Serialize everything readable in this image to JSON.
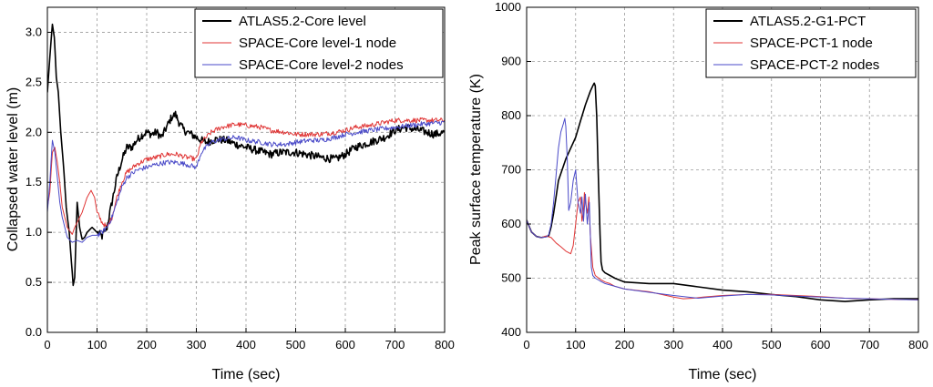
{
  "chart_data": [
    {
      "type": "line",
      "xlabel": "Time (sec)",
      "ylabel": "Collapsed water level (m)",
      "xlim": [
        0,
        800
      ],
      "ylim": [
        0,
        3.25
      ],
      "xticks": [
        0,
        100,
        200,
        300,
        400,
        500,
        600,
        700,
        800
      ],
      "yticks": [
        0.0,
        0.5,
        1.0,
        1.5,
        2.0,
        2.5,
        3.0
      ],
      "ytick_labels": [
        "0.0",
        "0.5",
        "1.0",
        "1.5",
        "2.0",
        "2.5",
        "3.0"
      ],
      "grid": true,
      "legend_position": "top-right",
      "series": [
        {
          "name": "ATLAS5.2-Core level",
          "color": "#000000",
          "noise": 0.04,
          "x": [
            0,
            5,
            10,
            14,
            18,
            22,
            27,
            32,
            38,
            44,
            50,
            52,
            55,
            60,
            65,
            70,
            75,
            80,
            90,
            100,
            110,
            120,
            130,
            140,
            150,
            160,
            170,
            180,
            190,
            200,
            210,
            220,
            230,
            240,
            250,
            258,
            265,
            275,
            290,
            300,
            310,
            320,
            340,
            360,
            380,
            400,
            420,
            450,
            470,
            500,
            520,
            550,
            580,
            600,
            620,
            650,
            680,
            700,
            720,
            750,
            780,
            800
          ],
          "y": [
            2.4,
            2.75,
            3.08,
            2.95,
            2.55,
            2.4,
            2.0,
            1.7,
            1.25,
            1.0,
            0.6,
            0.47,
            0.55,
            1.3,
            1.05,
            0.93,
            0.95,
            1.0,
            1.05,
            1.0,
            0.96,
            1.05,
            1.3,
            1.55,
            1.72,
            1.85,
            1.85,
            1.92,
            1.97,
            2.0,
            1.98,
            2.0,
            1.95,
            2.05,
            2.15,
            2.18,
            2.1,
            2.02,
            1.98,
            1.95,
            1.92,
            1.9,
            1.93,
            1.92,
            1.88,
            1.85,
            1.82,
            1.78,
            1.8,
            1.8,
            1.78,
            1.75,
            1.73,
            1.78,
            1.85,
            1.9,
            1.95,
            2.02,
            2.05,
            2.02,
            1.98,
            2.0
          ]
        },
        {
          "name": "SPACE-Core level-1 node",
          "color": "#e03535",
          "noise": 0.025,
          "x": [
            0,
            5,
            10,
            15,
            20,
            25,
            30,
            35,
            40,
            50,
            55,
            60,
            70,
            80,
            88,
            95,
            100,
            110,
            120,
            130,
            140,
            150,
            160,
            180,
            200,
            220,
            240,
            260,
            280,
            300,
            310,
            330,
            350,
            380,
            400,
            430,
            450,
            480,
            500,
            530,
            550,
            580,
            600,
            620,
            650,
            680,
            700,
            730,
            760,
            800
          ],
          "y": [
            1.25,
            1.4,
            1.8,
            1.85,
            1.7,
            1.5,
            1.25,
            1.15,
            1.05,
            0.98,
            1.05,
            1.1,
            1.2,
            1.35,
            1.42,
            1.35,
            1.2,
            1.1,
            1.05,
            1.15,
            1.35,
            1.5,
            1.6,
            1.68,
            1.73,
            1.75,
            1.78,
            1.78,
            1.75,
            1.73,
            1.9,
            2.0,
            2.05,
            2.08,
            2.07,
            2.05,
            2.02,
            2.0,
            1.98,
            1.98,
            1.98,
            2.0,
            2.02,
            2.05,
            2.07,
            2.1,
            2.12,
            2.12,
            2.12,
            2.12
          ]
        },
        {
          "name": "SPACE-Core level-2 nodes",
          "color": "#4a4ac8",
          "noise": 0.025,
          "x": [
            0,
            5,
            10,
            15,
            20,
            25,
            30,
            35,
            40,
            50,
            60,
            70,
            80,
            90,
            100,
            110,
            120,
            130,
            140,
            150,
            160,
            180,
            200,
            220,
            240,
            260,
            280,
            300,
            310,
            330,
            350,
            380,
            400,
            430,
            450,
            480,
            500,
            530,
            550,
            580,
            600,
            650,
            700,
            750,
            800
          ],
          "y": [
            1.2,
            1.5,
            1.92,
            1.8,
            1.55,
            1.3,
            1.15,
            1.05,
            0.95,
            0.9,
            0.92,
            0.9,
            0.95,
            0.97,
            0.97,
            1.0,
            1.05,
            1.15,
            1.3,
            1.45,
            1.55,
            1.62,
            1.65,
            1.68,
            1.7,
            1.7,
            1.68,
            1.65,
            1.8,
            1.9,
            1.93,
            1.95,
            1.92,
            1.9,
            1.88,
            1.88,
            1.9,
            1.92,
            1.92,
            1.95,
            1.98,
            2.02,
            2.05,
            2.08,
            2.1
          ]
        }
      ]
    },
    {
      "type": "line",
      "xlabel": "Time (sec)",
      "ylabel": "Peak surface temperature (K)",
      "xlim": [
        0,
        800
      ],
      "ylim": [
        400,
        1000
      ],
      "xticks": [
        0,
        100,
        200,
        300,
        400,
        500,
        600,
        700,
        800
      ],
      "yticks": [
        400,
        500,
        600,
        700,
        800,
        900,
        1000
      ],
      "ytick_labels": [
        "400",
        "500",
        "600",
        "700",
        "800",
        "900",
        "1000"
      ],
      "grid": true,
      "legend_position": "top-right",
      "series": [
        {
          "name": "ATLAS5.2-G1-PCT",
          "color": "#000000",
          "noise": 0,
          "x": [
            0,
            10,
            20,
            30,
            45,
            50,
            55,
            60,
            65,
            80,
            100,
            110,
            120,
            130,
            135,
            138,
            140,
            143,
            146,
            150,
            152,
            155,
            160,
            170,
            180,
            200,
            250,
            300,
            350,
            400,
            450,
            500,
            550,
            600,
            650,
            700,
            750,
            800
          ],
          "y": [
            607,
            585,
            577,
            575,
            578,
            595,
            620,
            650,
            680,
            720,
            760,
            790,
            820,
            845,
            855,
            860,
            855,
            800,
            700,
            580,
            530,
            515,
            510,
            505,
            500,
            493,
            490,
            490,
            484,
            478,
            475,
            470,
            466,
            460,
            457,
            460,
            462,
            462
          ]
        },
        {
          "name": "SPACE-PCT-1 node",
          "color": "#e03535",
          "noise": 0,
          "x": [
            0,
            10,
            20,
            30,
            40,
            50,
            60,
            70,
            80,
            90,
            95,
            100,
            105,
            110,
            113,
            116,
            118,
            120,
            124,
            127,
            130,
            135,
            140,
            150,
            160,
            170,
            180,
            200,
            250,
            300,
            320,
            340,
            360,
            400,
            450,
            500,
            550,
            600,
            650,
            700,
            750,
            800
          ],
          "y": [
            607,
            585,
            577,
            575,
            578,
            575,
            565,
            558,
            550,
            545,
            560,
            600,
            640,
            650,
            605,
            625,
            658,
            640,
            620,
            650,
            580,
            520,
            505,
            498,
            493,
            490,
            485,
            480,
            475,
            465,
            462,
            463,
            465,
            468,
            470,
            470,
            468,
            466,
            463,
            462,
            461,
            460
          ]
        },
        {
          "name": "SPACE-PCT-2 nodes",
          "color": "#4a4ac8",
          "noise": 0,
          "x": [
            0,
            10,
            20,
            30,
            40,
            45,
            50,
            55,
            60,
            65,
            70,
            75,
            78,
            80,
            83,
            86,
            90,
            95,
            100,
            105,
            110,
            113,
            116,
            118,
            120,
            124,
            128,
            132,
            135,
            140,
            150,
            160,
            180,
            200,
            250,
            300,
            350,
            400,
            450,
            500,
            550,
            600,
            650,
            700,
            750,
            800
          ],
          "y": [
            607,
            585,
            577,
            575,
            576,
            580,
            600,
            640,
            690,
            740,
            770,
            785,
            795,
            780,
            720,
            625,
            640,
            680,
            700,
            640,
            620,
            650,
            605,
            630,
            655,
            600,
            640,
            520,
            505,
            500,
            495,
            490,
            485,
            480,
            474,
            468,
            463,
            467,
            470,
            469,
            467,
            465,
            463,
            462,
            461,
            460
          ]
        }
      ]
    }
  ]
}
